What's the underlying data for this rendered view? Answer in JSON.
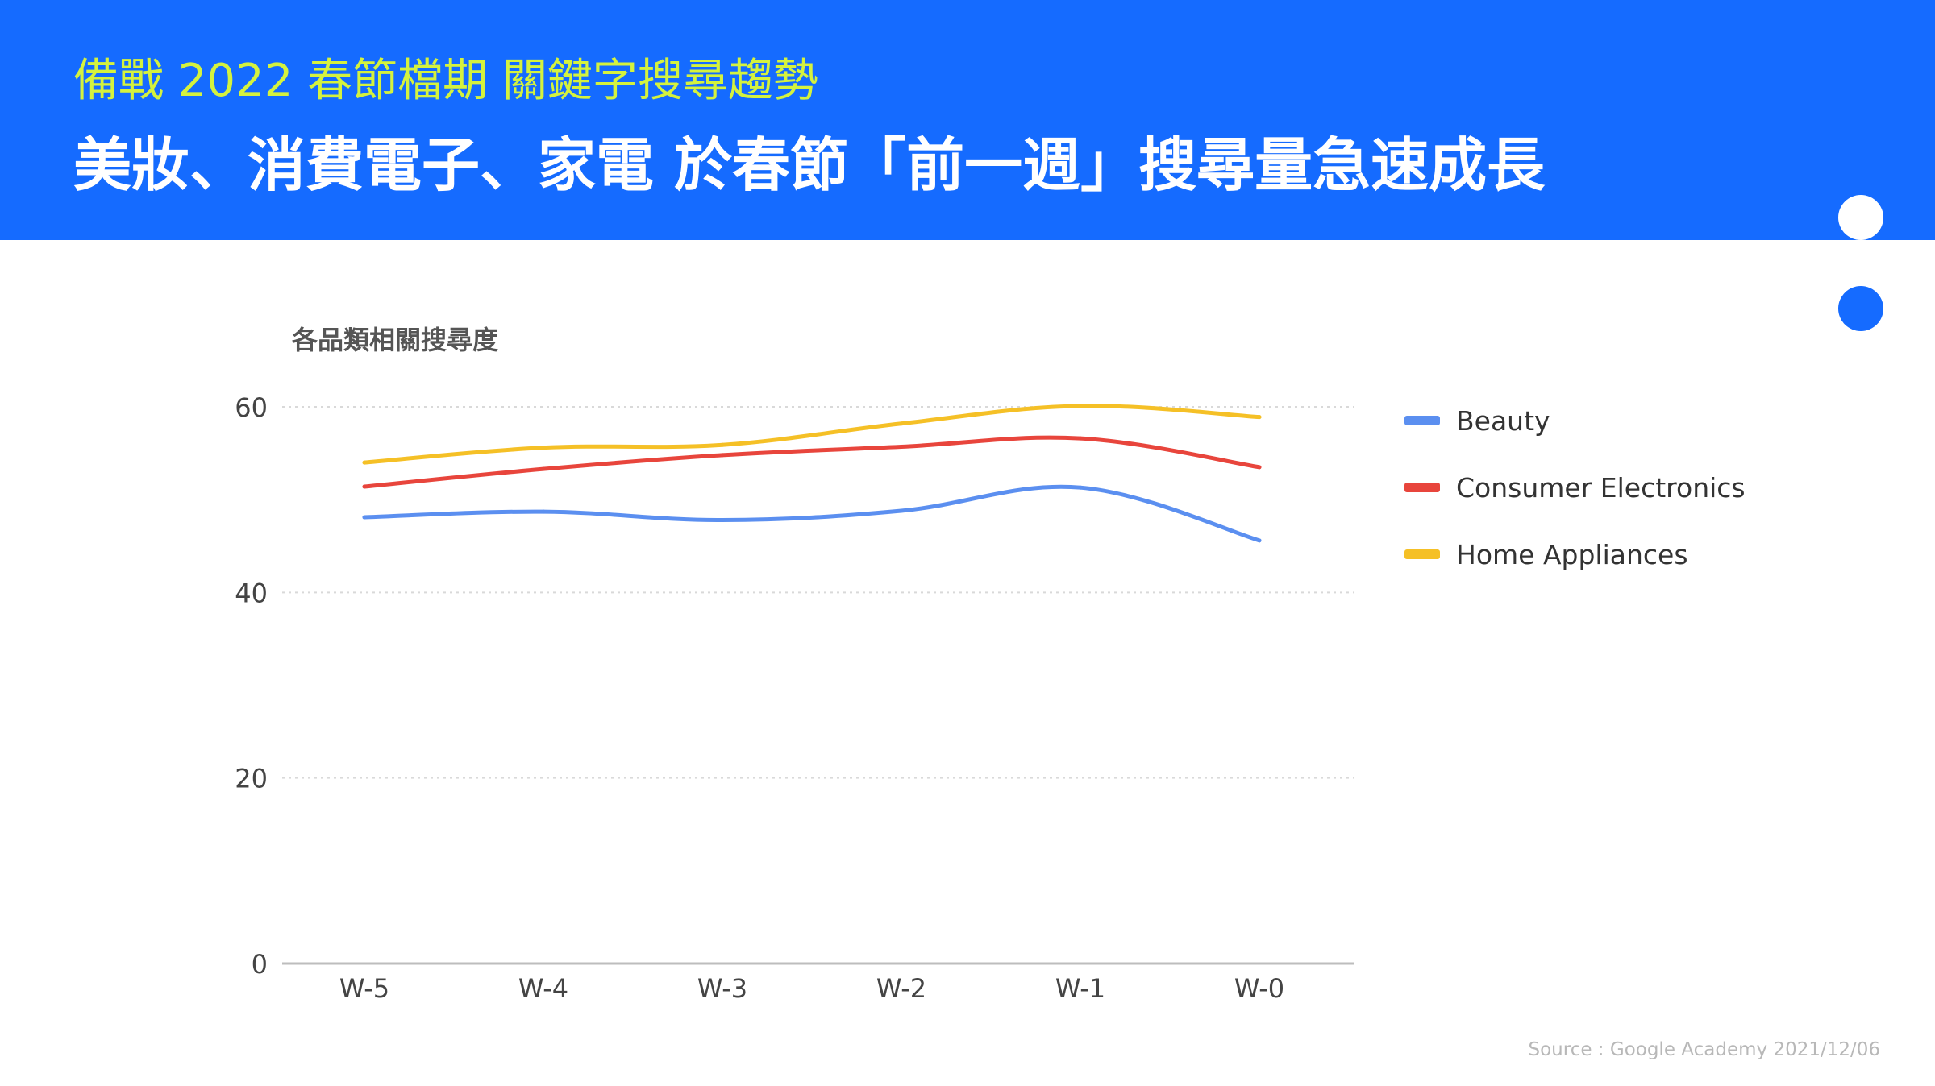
{
  "header": {
    "subtitle": "備戰 2022 春節檔期 關鍵字搜尋趨勢",
    "title": "美妝、消費電子、家電 於春節「前一週」搜尋量急速成長"
  },
  "colors": {
    "banner": "#156bff",
    "subtitle": "#d4f23e",
    "title": "#ffffff",
    "dot_light": "#ffffff",
    "dot_accent": "#156bff"
  },
  "chart_data": {
    "type": "line",
    "title": "各品類相關搜尋度",
    "xlabel": "",
    "ylabel": "",
    "categories": [
      "W-5",
      "W-4",
      "W-3",
      "W-2",
      "W-1",
      "W-0"
    ],
    "ylim": [
      0,
      60
    ],
    "yticks": [
      0,
      20,
      40,
      60
    ],
    "grid": true,
    "legend_position": "right",
    "series": [
      {
        "name": "Beauty",
        "color": "#5b8ff0",
        "values": [
          48.1,
          48.7,
          47.8,
          48.8,
          51.3,
          45.6
        ]
      },
      {
        "name": "Consumer Electronics",
        "color": "#e8453c",
        "values": [
          51.4,
          53.3,
          54.8,
          55.7,
          56.6,
          53.5
        ]
      },
      {
        "name": "Home Appliances",
        "color": "#f5c026",
        "values": [
          54.0,
          55.6,
          55.9,
          58.2,
          60.1,
          58.9
        ]
      }
    ]
  },
  "footer": {
    "source": "Source : Google Academy 2021/12/06"
  }
}
